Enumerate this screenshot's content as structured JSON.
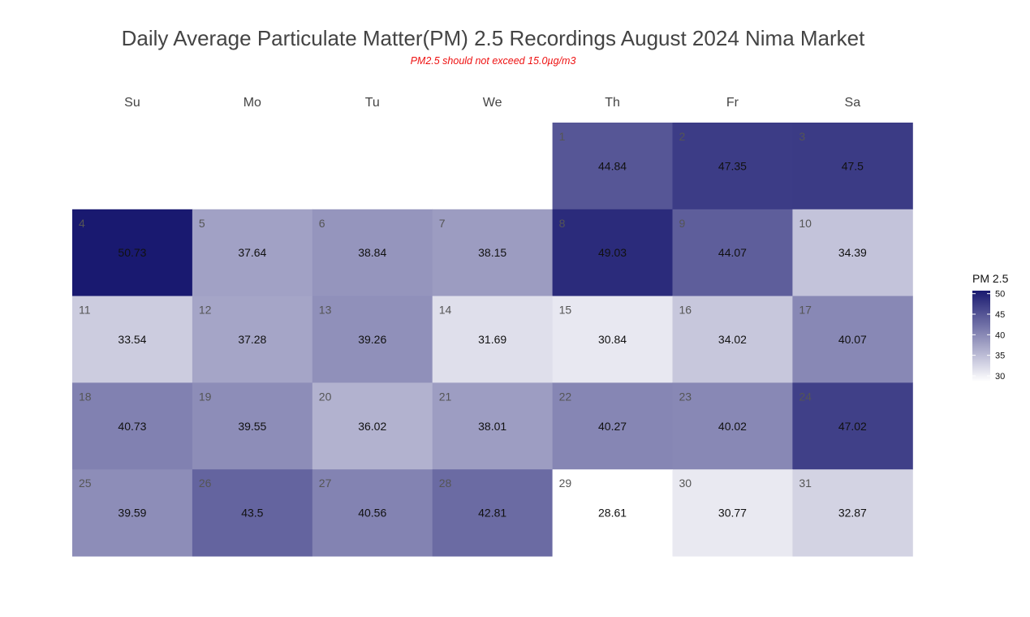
{
  "chart_data": {
    "type": "heatmap",
    "title": "Daily Average Particulate Matter(PM) 2.5 Recordings August 2024 Nima Market",
    "subtitle": "PM2.5 should not exceed 15.0µg/m3",
    "weekdays": [
      "Su",
      "Mo",
      "Tu",
      "We",
      "Th",
      "Fr",
      "Sa"
    ],
    "first_weekday_index": 4,
    "days": [
      {
        "day": 1,
        "value": 44.84
      },
      {
        "day": 2,
        "value": 47.35
      },
      {
        "day": 3,
        "value": 47.5
      },
      {
        "day": 4,
        "value": 50.73
      },
      {
        "day": 5,
        "value": 37.64
      },
      {
        "day": 6,
        "value": 38.84
      },
      {
        "day": 7,
        "value": 38.15
      },
      {
        "day": 8,
        "value": 49.03
      },
      {
        "day": 9,
        "value": 44.07
      },
      {
        "day": 10,
        "value": 34.39
      },
      {
        "day": 11,
        "value": 33.54
      },
      {
        "day": 12,
        "value": 37.28
      },
      {
        "day": 13,
        "value": 39.26
      },
      {
        "day": 14,
        "value": 31.69
      },
      {
        "day": 15,
        "value": 30.84
      },
      {
        "day": 16,
        "value": 34.02
      },
      {
        "day": 17,
        "value": 40.07
      },
      {
        "day": 18,
        "value": 40.73
      },
      {
        "day": 19,
        "value": 39.55
      },
      {
        "day": 20,
        "value": 36.02
      },
      {
        "day": 21,
        "value": 38.01
      },
      {
        "day": 22,
        "value": 40.27
      },
      {
        "day": 23,
        "value": 40.02
      },
      {
        "day": 24,
        "value": 47.02
      },
      {
        "day": 25,
        "value": 39.59
      },
      {
        "day": 26,
        "value": 43.5
      },
      {
        "day": 27,
        "value": 40.56
      },
      {
        "day": 28,
        "value": 42.81
      },
      {
        "day": 29,
        "value": 28.61
      },
      {
        "day": 30,
        "value": 30.77
      },
      {
        "day": 31,
        "value": 32.87
      }
    ],
    "legend": {
      "title": "PM 2.5",
      "ticks": [
        50,
        45,
        40,
        35,
        30
      ],
      "range": [
        28.61,
        50.73
      ],
      "low_color": "#ffffff",
      "high_color": "#191970",
      "position": "right"
    }
  }
}
